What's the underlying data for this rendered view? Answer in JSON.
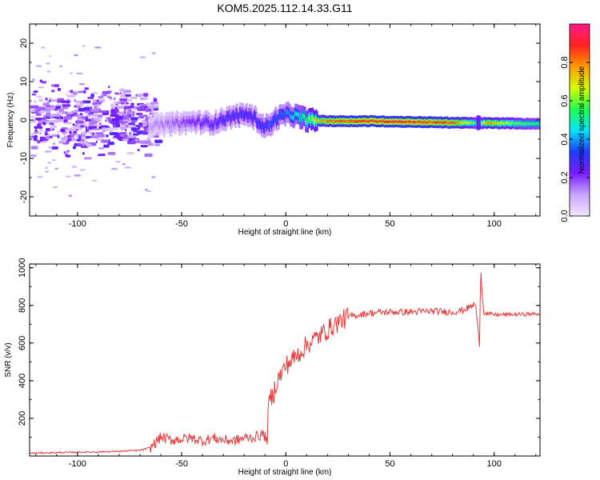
{
  "chart_data": [
    {
      "type": "heatmap",
      "title": "KOM5.2025.112.14.33.G11",
      "xlabel": "Height of straight line (km)",
      "ylabel": "Frequency (Hz)",
      "xlim": [
        -123,
        122
      ],
      "ylim": [
        -25,
        25
      ],
      "xticks": [
        -100,
        -50,
        0,
        50,
        100
      ],
      "yticks": [
        -20,
        -10,
        0,
        10,
        20
      ],
      "colorbar": {
        "label": "Normalized spectral amplitude",
        "range": [
          0,
          1
        ],
        "ticks": [
          0.0,
          0.2,
          0.4,
          0.6,
          0.8
        ],
        "tick_labels": [
          "0.0",
          "0.2",
          "0.4",
          "0.6",
          "0.8"
        ],
        "colors": [
          "#f3e5ff",
          "#c9a5ff",
          "#7a1cff",
          "#1f3bff",
          "#00e5ff",
          "#20ff50",
          "#d8ff00",
          "#ff9a00",
          "#ff2020",
          "#ff1a8a"
        ]
      },
      "ridge": [
        {
          "x": -65,
          "y": -1.5
        },
        {
          "x": -55,
          "y": -1
        },
        {
          "x": -45,
          "y": -0.5
        },
        {
          "x": -35,
          "y": -0.8
        },
        {
          "x": -30,
          "y": 0.3
        },
        {
          "x": -25,
          "y": 1.0
        },
        {
          "x": -20,
          "y": 1.5
        },
        {
          "x": -15,
          "y": 0.5
        },
        {
          "x": -12,
          "y": -1.5
        },
        {
          "x": -8,
          "y": -1.5
        },
        {
          "x": -5,
          "y": 0.5
        },
        {
          "x": 0,
          "y": 1.5
        },
        {
          "x": 5,
          "y": 1.0
        },
        {
          "x": 10,
          "y": 0.0
        },
        {
          "x": 20,
          "y": -0.3
        },
        {
          "x": 40,
          "y": -0.3
        },
        {
          "x": 60,
          "y": -0.5
        },
        {
          "x": 80,
          "y": -0.7
        },
        {
          "x": 90,
          "y": -0.8
        },
        {
          "x": 95,
          "y": -0.8
        },
        {
          "x": 110,
          "y": -0.9
        },
        {
          "x": 122,
          "y": -1.0
        }
      ],
      "amplitude_profile": [
        {
          "x": -123,
          "a": 0.08
        },
        {
          "x": -70,
          "a": 0.1
        },
        {
          "x": -60,
          "a": 0.15
        },
        {
          "x": -45,
          "a": 0.22
        },
        {
          "x": -30,
          "a": 0.3
        },
        {
          "x": -15,
          "a": 0.32
        },
        {
          "x": 0,
          "a": 0.38
        },
        {
          "x": 10,
          "a": 0.6
        },
        {
          "x": 20,
          "a": 0.85
        },
        {
          "x": 40,
          "a": 0.92
        },
        {
          "x": 60,
          "a": 0.9
        },
        {
          "x": 80,
          "a": 0.85
        },
        {
          "x": 92,
          "a": 0.55
        },
        {
          "x": 97,
          "a": 0.8
        },
        {
          "x": 110,
          "a": 0.6
        },
        {
          "x": 122,
          "a": 0.55
        }
      ]
    },
    {
      "type": "line",
      "title": "",
      "xlabel": "Height of straight line (km)",
      "ylabel": "SNR (v/v)",
      "xlim": [
        -123,
        122
      ],
      "ylim": [
        0,
        1020
      ],
      "xticks": [
        -100,
        -50,
        0,
        50,
        100
      ],
      "yticks": [
        200,
        400,
        600,
        800,
        1000
      ],
      "series": [
        {
          "color": "#e83a3a",
          "points": [
            {
              "x": -123,
              "y": 15
            },
            {
              "x": -110,
              "y": 18
            },
            {
              "x": -100,
              "y": 20
            },
            {
              "x": -90,
              "y": 22
            },
            {
              "x": -80,
              "y": 25
            },
            {
              "x": -70,
              "y": 30
            },
            {
              "x": -65,
              "y": 45
            },
            {
              "x": -60,
              "y": 100
            },
            {
              "x": -55,
              "y": 85
            },
            {
              "x": -50,
              "y": 90
            },
            {
              "x": -45,
              "y": 95
            },
            {
              "x": -40,
              "y": 80
            },
            {
              "x": -35,
              "y": 95
            },
            {
              "x": -30,
              "y": 85
            },
            {
              "x": -25,
              "y": 80
            },
            {
              "x": -20,
              "y": 95
            },
            {
              "x": -15,
              "y": 100
            },
            {
              "x": -11,
              "y": 115
            },
            {
              "x": -9,
              "y": 90
            },
            {
              "x": -8,
              "y": 300
            },
            {
              "x": -6,
              "y": 320
            },
            {
              "x": -5,
              "y": 380
            },
            {
              "x": 0,
              "y": 480
            },
            {
              "x": 5,
              "y": 530
            },
            {
              "x": 10,
              "y": 590
            },
            {
              "x": 15,
              "y": 630
            },
            {
              "x": 20,
              "y": 670
            },
            {
              "x": 25,
              "y": 710
            },
            {
              "x": 30,
              "y": 740
            },
            {
              "x": 35,
              "y": 750
            },
            {
              "x": 40,
              "y": 760
            },
            {
              "x": 50,
              "y": 765
            },
            {
              "x": 60,
              "y": 765
            },
            {
              "x": 70,
              "y": 770
            },
            {
              "x": 80,
              "y": 765
            },
            {
              "x": 85,
              "y": 775
            },
            {
              "x": 88,
              "y": 790
            },
            {
              "x": 90,
              "y": 800
            },
            {
              "x": 91,
              "y": 810
            },
            {
              "x": 92,
              "y": 700
            },
            {
              "x": 93,
              "y": 580
            },
            {
              "x": 93.5,
              "y": 1020
            },
            {
              "x": 94,
              "y": 900
            },
            {
              "x": 95,
              "y": 760
            },
            {
              "x": 100,
              "y": 750
            },
            {
              "x": 110,
              "y": 752
            },
            {
              "x": 122,
              "y": 755
            }
          ]
        }
      ]
    }
  ]
}
